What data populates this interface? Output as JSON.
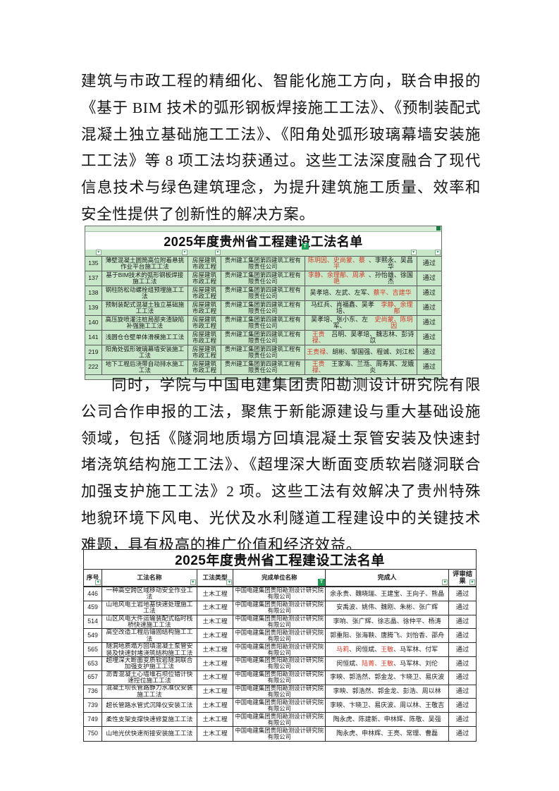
{
  "colors": {
    "highlight_red": "#cf3b28",
    "table1_cell_green": "#c8e7c9",
    "excel_filter_green": "#1f9d55"
  },
  "icons": {
    "filter_dropdown": "▾",
    "filter_active": "T"
  },
  "paragraphs": {
    "p1": "建筑与市政工程的精细化、智能化施工方向，联合申报的《基于 BIM 技术的弧形钢板焊接施工工法》、《预制装配式混凝土独立基础施工工法》、《阳角处弧形玻璃幕墙安装施工工法》等 8 项工法均获通过。这些工法深度融合了现代信息技术与绿色建筑理念，为提升建筑施工质量、效率和安全性提供了创新性的解决方案。",
    "p2": "同时，学院与中国电建集团贵阳勘测设计研究院有限公司合作申报的工法，聚焦于新能源建设与重大基础设施领域，包括《隧洞地质塌方回填混凝土泵管安装及快速封堵浇筑结构施工工法》、《超埋深大断面变质软岩隧洞联合加强支护施工工法》2 项。这些工法有效解决了贵州特殊地貌环境下风电、光伏及水利隧道工程建设中的关键技术难题，具有极高的推广价值和经济效益。"
  },
  "table1": {
    "title": "2025年度贵州省工程建设工法名单",
    "rows": [
      {
        "no": "135",
        "name": "薄壁混凝土圆筒高位附着悬挑作业平台施工工法",
        "category": "房屋建筑市政工程",
        "org": "贵州建工集团第四建筑工程有限责任公司",
        "people": [
          [
            "陈玥因、史尚蒙、蔡平",
            "red"
          ],
          [
            "、李熙永、吴昌华",
            ""
          ]
        ],
        "result": "通过"
      },
      {
        "no": "137",
        "name": "基于BIM技术的弧形钢板焊接施工工法",
        "category": "房屋建筑市政工程",
        "org": "贵州建工集团第四建筑工程有限责任公司",
        "people": [
          [
            "李静、余理郬、周承艳",
            "red"
          ],
          [
            "、孙怡雄、徐国杰",
            ""
          ]
        ],
        "result": "通过"
      },
      {
        "no": "138",
        "name": "钢柱防松动螺栓组预埋施工工法",
        "category": "房屋建筑市政工程",
        "org": "贵州建工集团第四建筑工程有限责任公司",
        "people": [
          [
            "吴孝培、左武、左军、",
            ""
          ],
          [
            "蔡平、吉建华",
            "red"
          ]
        ],
        "result": "通过"
      },
      {
        "no": "139",
        "name": "预制装配式混凝土独立基础施工工法",
        "category": "房屋建筑市政工程",
        "org": "贵州建工集团第四建筑工程有限责任公司",
        "people": [
          [
            "马红兵、肖福鑫、吴孝培、",
            ""
          ],
          [
            "李静、余理郬",
            "red"
          ]
        ],
        "result": "通过"
      },
      {
        "no": "140",
        "name": "高压旋喷灌注桩局部夹渣缺陷补强施工工法",
        "category": "房屋建筑市政工程",
        "org": "贵州建工集团第四建筑工程有限责任公司",
        "people": [
          [
            "吴孝培、张小东、左军、",
            ""
          ],
          [
            "史尚蒙、陈玥因",
            "red"
          ]
        ],
        "result": "通过"
      },
      {
        "no": "141",
        "name": "浅圆仓仓壁单体滑模施工工法",
        "category": "房屋建筑市政工程",
        "org": "贵州建工集团第四建筑工程有限责任公司",
        "people": [
          [
            "王贵禄、",
            "red"
          ],
          [
            "吕明、吴孝培、魏志林、彭诗苡",
            ""
          ]
        ],
        "result": "通过"
      },
      {
        "no": "219",
        "name": "阳角处弧形玻璃幕墙安装施工工法",
        "category": "房屋建筑市政工程",
        "org": "贵州建工集团第四建筑工程有限责任公司",
        "people": [
          [
            "王贵禄、",
            "red"
          ],
          [
            "胡彬、邹国强、程诚、刘江松",
            ""
          ]
        ],
        "result": "通过"
      },
      {
        "no": "222",
        "name": "地下工程后浇带自动排水施工工法",
        "category": "房屋建筑市政工程",
        "org": "贵州建工集团第四建筑工程有限责任公司",
        "people": [
          [
            "王贵禄、",
            "red"
          ],
          [
            "王家海、兰湉、周寿其、龙娥炎",
            ""
          ]
        ],
        "result": "通过"
      }
    ]
  },
  "table2": {
    "title": "2025年度贵州省工程建设工法名单",
    "headers": [
      "序号",
      "工法名称",
      "工法类型",
      "完成单位名称",
      "完成人",
      "评审结果"
    ],
    "rows": [
      {
        "no": "446",
        "name": "一种高空跨区域移动安全作业工法",
        "category": "土木工程",
        "org": "中国电建集团贵阳勘测设计研究院有限公司",
        "people": [
          [
            "余永贵、魏晓瑞、王建宝、王向子、熊晶",
            ""
          ]
        ],
        "result": "通过"
      },
      {
        "no": "459",
        "name": "山地风电土岩地基快速处理施工工法",
        "category": "土木工程",
        "org": "中国电建集团贵阳勘测设计研究院有限公司",
        "people": [
          [
            "安禹波、姚伟、魏刚、朱彬、张广辉",
            ""
          ]
        ],
        "result": "通过"
      },
      {
        "no": "514",
        "name": "山区风电大件运输装配式临时栈桥快速施工工法",
        "category": "土木工程",
        "org": "中国电建集团贵阳勘测设计研究院有限公司",
        "people": [
          [
            "李响、张广辉、徐志晶、徐仲平、杨涛",
            ""
          ]
        ],
        "result": "通过"
      },
      {
        "no": "549",
        "name": "高空改造工程后锚固结构施工工法",
        "category": "土木工程",
        "org": "中国电建集团贵阳勘测设计研究院有限公司",
        "people": [
          [
            "郭重阳、张海鞅、唐腾飞、刘怡香、邵舟",
            ""
          ]
        ],
        "result": "通过"
      },
      {
        "no": "565",
        "name": "隧洞地质塌方回填混凝土泵管安装及快速封堵浇筑结构施工工法",
        "category": "土木工程",
        "org": "中国电建集团贵阳勘测设计研究院有限公司",
        "people": [
          [
            "马莉",
            "red"
          ],
          [
            "、闵恒斌、",
            ""
          ],
          [
            "王敏",
            "red"
          ],
          [
            "、马军林、付军",
            ""
          ]
        ],
        "result": "通过"
      },
      {
        "no": "653",
        "name": "超埋深大断面变质软岩隧洞联合加强支护施工工法",
        "category": "土木工程",
        "org": "中国电建集团贵阳勘测设计研究院有限公司",
        "people": [
          [
            "闵恒斌、",
            ""
          ],
          [
            "陆菁、王敏",
            "red"
          ],
          [
            "、马军林、刘伦",
            ""
          ]
        ],
        "result": "通过"
      },
      {
        "no": "657",
        "name": "沥青混凝土心墙堆石坝位错计快速控位施工工法",
        "category": "土木工程",
        "org": "中国电建集团贵阳勘测设计研究院有限公司",
        "people": [
          [
            "李映、郭浩然、郭金龙、卞晓卫、易庆波",
            ""
          ]
        ],
        "result": "通过"
      },
      {
        "no": "736",
        "name": "混凝土坝长管路静力水准仪安装施工工法",
        "category": "土木工程",
        "org": "中国电建集团贵阳勘测设计研究院有限公司",
        "people": [
          [
            "李映、郭浩然、郭金龙、彭浩、周以林",
            ""
          ]
        ],
        "result": "通过"
      },
      {
        "no": "739",
        "name": "超长管路水管式沉降仪安装工法",
        "category": "土木工程",
        "org": "中国电建集团贵阳勘测设计研究院有限公司",
        "people": [
          [
            "李映、卞晓卫、易庆波、周以林、王敬吉",
            ""
          ]
        ],
        "result": "通过"
      },
      {
        "no": "749",
        "name": "柔性支架支撑快速修复施工工法",
        "category": "土木工程",
        "org": "中国电建集团贵阳勘测设计研究院有限公司",
        "people": [
          [
            "陶永虎、陈建新、申林辉、陈敬、吴强",
            ""
          ]
        ],
        "result": "通过"
      },
      {
        "no": "750",
        "name": "山地光伏快速衔接安装施工工法",
        "category": "土木工程",
        "org": "中国电建集团贵阳勘测设计研究院有限公司",
        "people": [
          [
            "陶永虎、申林辉、王亮、常理、曹磊",
            ""
          ]
        ],
        "result": "通过"
      }
    ]
  }
}
